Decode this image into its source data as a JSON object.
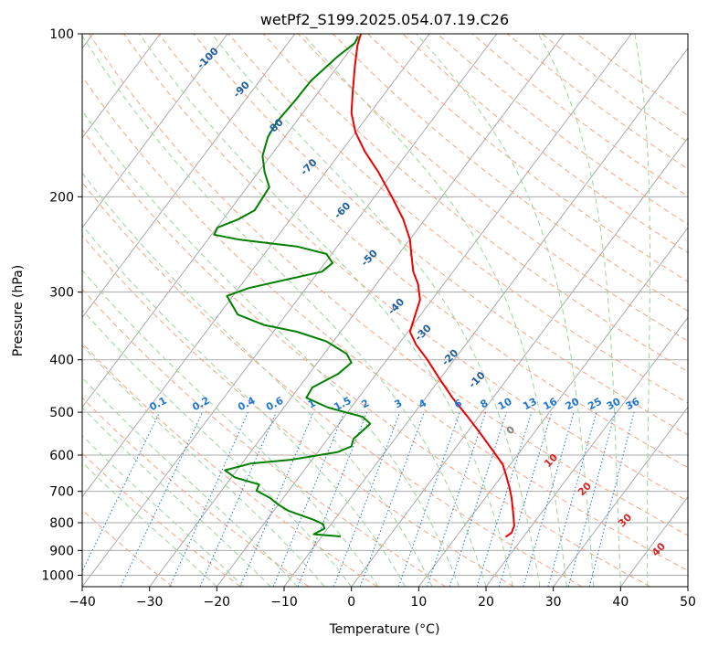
{
  "chart_data": {
    "type": "line",
    "title": "wetPf2_S199.2025.054.07.19.C26",
    "xlabel": "Temperature (°C)",
    "ylabel": "Pressure (hPa)",
    "xlim": [
      -40,
      50
    ],
    "ylim": [
      1050,
      100
    ],
    "y_scale": "log",
    "grid": true,
    "x_ticks": [
      -40,
      -30,
      -20,
      -10,
      0,
      10,
      20,
      30,
      40,
      50
    ],
    "y_ticks": [
      100,
      200,
      300,
      400,
      500,
      600,
      700,
      800,
      900,
      1000
    ],
    "series": [
      {
        "role": "temperature",
        "color": "#ee0000",
        "points": [
          [
            22.9,
            850
          ],
          [
            23.8,
            835
          ],
          [
            24.2,
            810
          ],
          [
            24.0,
            760
          ],
          [
            23.8,
            720
          ],
          [
            23.5,
            690
          ],
          [
            23.0,
            655
          ],
          [
            22.5,
            625
          ],
          [
            21.5,
            600
          ],
          [
            19.3,
            550
          ],
          [
            17.3,
            510
          ],
          [
            15.0,
            470
          ],
          [
            12.9,
            430
          ],
          [
            11.3,
            400
          ],
          [
            9.6,
            375
          ],
          [
            8.7,
            355
          ],
          [
            9.5,
            330
          ],
          [
            10.2,
            310
          ],
          [
            9.9,
            290
          ],
          [
            9.2,
            275
          ],
          [
            8.9,
            255
          ],
          [
            8.7,
            240
          ],
          [
            7.7,
            220
          ],
          [
            6.0,
            200
          ],
          [
            4.0,
            180
          ],
          [
            2.0,
            165
          ],
          [
            0.6,
            152
          ],
          [
            0.0,
            140
          ],
          [
            0.2,
            128
          ],
          [
            0.5,
            115
          ],
          [
            0.9,
            105
          ],
          [
            1.4,
            100
          ]
        ]
      },
      {
        "role": "dewpoint",
        "color": "#008000",
        "points": [
          [
            -1.6,
            848
          ],
          [
            -5.6,
            840
          ],
          [
            -4.0,
            820
          ],
          [
            -4.2,
            805
          ],
          [
            -5.6,
            790
          ],
          [
            -9.4,
            760
          ],
          [
            -10.9,
            740
          ],
          [
            -12.1,
            720
          ],
          [
            -14.1,
            698
          ],
          [
            -13.7,
            680
          ],
          [
            -17.3,
            660
          ],
          [
            -18.8,
            640
          ],
          [
            -15.0,
            622
          ],
          [
            -9.0,
            612
          ],
          [
            -2.0,
            592
          ],
          [
            0.0,
            578
          ],
          [
            0.3,
            560
          ],
          [
            2.1,
            535
          ],
          [
            2.8,
            525
          ],
          [
            1.7,
            510
          ],
          [
            -3.5,
            490
          ],
          [
            -6.7,
            470
          ],
          [
            -5.8,
            450
          ],
          [
            -2.0,
            425
          ],
          [
            0.0,
            405
          ],
          [
            -0.7,
            390
          ],
          [
            -3.7,
            370
          ],
          [
            -8.1,
            355
          ],
          [
            -13.0,
            345
          ],
          [
            -16.9,
            330
          ],
          [
            -18.5,
            305
          ],
          [
            -15.3,
            295
          ],
          [
            -10.0,
            285
          ],
          [
            -4.4,
            275
          ],
          [
            -2.8,
            265
          ],
          [
            -3.7,
            255
          ],
          [
            -8.1,
            247
          ],
          [
            -16.6,
            240
          ],
          [
            -20.4,
            235
          ],
          [
            -19.9,
            228
          ],
          [
            -16.8,
            220
          ],
          [
            -14.4,
            212
          ],
          [
            -13.1,
            200
          ],
          [
            -12.2,
            192
          ],
          [
            -12.9,
            180
          ],
          [
            -13.2,
            168
          ],
          [
            -12.4,
            155
          ],
          [
            -11.0,
            145
          ],
          [
            -8.4,
            133
          ],
          [
            -6.0,
            122
          ],
          [
            -2.0,
            110
          ],
          [
            0.5,
            104
          ],
          [
            1.0,
            101
          ]
        ]
      }
    ],
    "annotations": {
      "mixing_ratio_labels": [
        "0.1",
        "0.2",
        "0.4",
        "0.6",
        "1",
        "1.5",
        "2",
        "3",
        "4",
        "6",
        "8",
        "10",
        "13",
        "16",
        "20",
        "25",
        "30",
        "36"
      ],
      "dry_adiabat_labels": [
        "-100",
        "-90",
        "-80",
        "-70",
        "-60",
        "-50",
        "-40",
        "-30",
        "-20",
        "-10"
      ],
      "moist_adiabat_labels": [
        "0",
        "10",
        "20",
        "30",
        "40"
      ]
    },
    "colors": {
      "isotherm": "#aaaaaa",
      "dry_adiabat": "#f4a582",
      "moist_adiabat": "#9ed39e",
      "mixing_ratio": "#1f77d4",
      "dry_label": "#1f5fa0",
      "moist_label": "#d62728",
      "zero_label": "#808080"
    }
  }
}
